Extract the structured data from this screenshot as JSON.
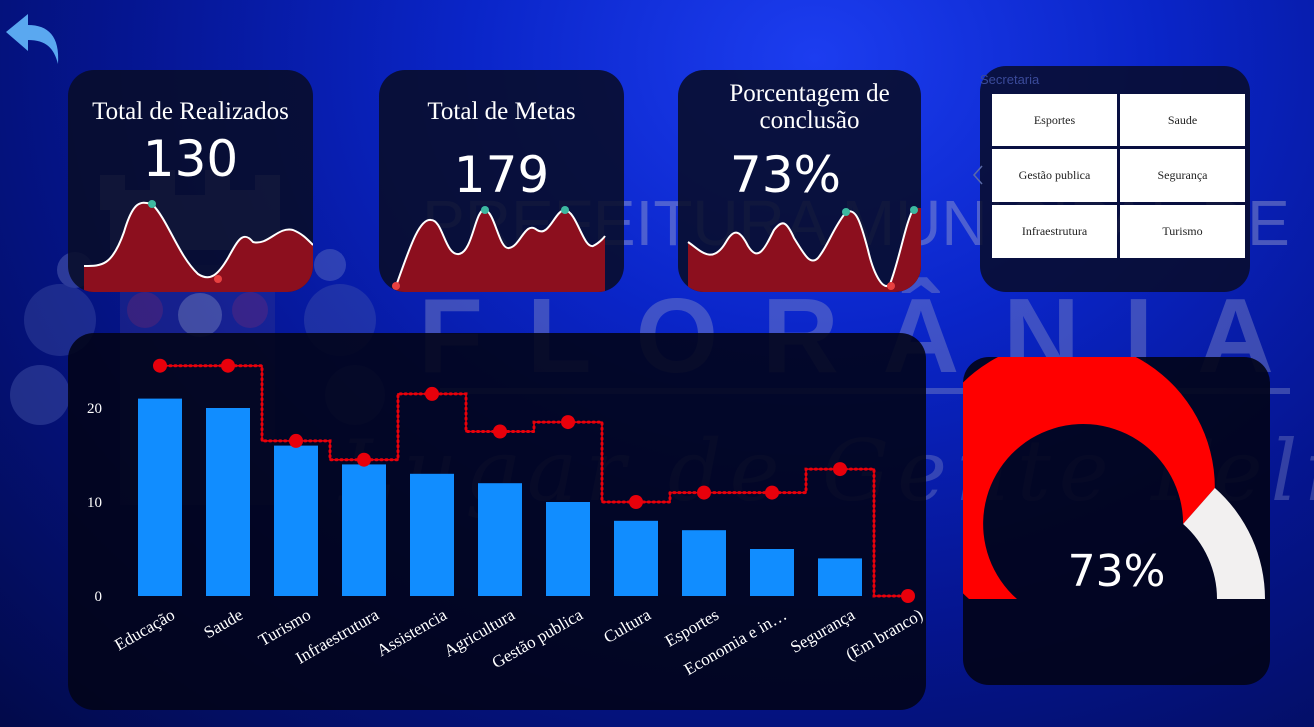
{
  "colors": {
    "accent_red": "#e8000b",
    "bar_blue": "#118dff",
    "gauge_red": "#ff0000",
    "gauge_rest": "#f2f0f0",
    "spark_fill": "#8c0f1e"
  },
  "nav": {
    "back_icon": "back-arrow-icon"
  },
  "watermark": {
    "line1": "PREFEITURA MUNICIPAL DE",
    "line2": "FLORÂNIA",
    "line3": "Lugar de Gente Feliz"
  },
  "kpis": [
    {
      "title": "Total de Realizados",
      "value": "130"
    },
    {
      "title": "Total de Metas",
      "value": "179"
    },
    {
      "title": "Porcentagem de conclusão",
      "value": "73%"
    }
  ],
  "slicer": {
    "title": "Secretaria",
    "options": [
      "Esportes",
      "Saude",
      "Gestão publica",
      "Segurança",
      "Infraestrutura",
      "Turismo"
    ]
  },
  "chart_data": {
    "type": "bar",
    "categories": [
      "Educação",
      "Saude",
      "Turismo",
      "Infraestrutura",
      "Assistencia",
      "Agricultura",
      "Gestão publica",
      "Cultura",
      "Esportes",
      "Economia e in…",
      "Segurança",
      "(Em branco)"
    ],
    "series": [
      {
        "type": "bar",
        "values": [
          21,
          20,
          16,
          14,
          13,
          12,
          10,
          8,
          7,
          5,
          4,
          0
        ]
      },
      {
        "type": "line",
        "step": true,
        "values": [
          24.5,
          24.5,
          16.5,
          14.5,
          21.5,
          17.5,
          18.5,
          10,
          11,
          11,
          13.5,
          0
        ]
      }
    ],
    "yticks": [
      0,
      10,
      20
    ],
    "ylim": [
      0,
      25
    ]
  },
  "gauge": {
    "value": 73,
    "label": "73%"
  }
}
